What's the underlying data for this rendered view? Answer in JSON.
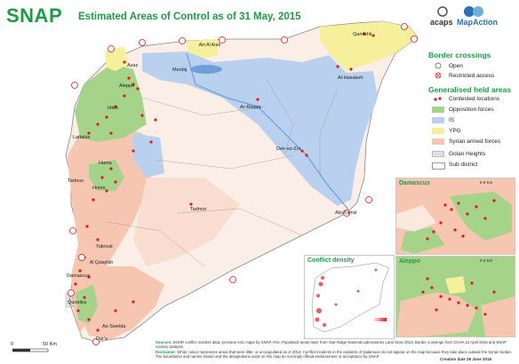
{
  "header": {
    "brand": "SNAP",
    "title": "Estimated Areas of Control as of 31 May, 2015",
    "logos": [
      "acaps",
      "MapAction"
    ]
  },
  "legend": {
    "border_heading": "Border crossings",
    "border_items": [
      "Open",
      "Restricted access"
    ],
    "areas_heading": "Generalised held areas",
    "area_items": [
      {
        "label": "Contested locations",
        "color": "#e01b1b"
      },
      {
        "label": "Opposition forces",
        "color": "#a6d38a"
      },
      {
        "label": "IS",
        "color": "#b9d0ee"
      },
      {
        "label": "YPG",
        "color": "#f6ef9c"
      },
      {
        "label": "Syrian armed forces",
        "color": "#f6c6b0"
      }
    ],
    "other_items": [
      "Golan Heights",
      "Sub district"
    ]
  },
  "places": {
    "azaz": "Azaz",
    "ain_al_arab": "Ain Al Arab",
    "aleppo": "Aleppo",
    "menbij": "Menbij",
    "qamishli": "Qamishli",
    "al_hasakeh": "Al-Hasakeh",
    "idleb": "Idleb",
    "ar_raqqa": "Ar-Raqqa",
    "lattakia": "Lattakia",
    "deir_ez_zor": "Deir-ez-Zor",
    "hama": "Hama",
    "tartous": "Tartous",
    "homs": "Homs",
    "tadmor": "Tadmor",
    "abu_kamal": "Abu Kamal",
    "yabroud": "Yabroud",
    "al_qutayfah": "Al Qutayfah",
    "damascus": "Damascus",
    "quneitra": "Quneitra",
    "as_sweida": "As-Sweida",
    "daraa": "Dar'a"
  },
  "insets": {
    "damascus": {
      "title": "Damascus",
      "scale": "0  5 Km"
    },
    "aleppo": {
      "title": "Aleppo",
      "scale": "0  2 Km"
    },
    "density": {
      "title": "Conflict density"
    }
  },
  "scale": {
    "zero": "0",
    "end": "50 Km"
  },
  "footer": {
    "sources_label": "Sources:",
    "sources": "SOHR conflict incident data; previous AoC maps by SNAP, HIU; Populated areas layer from Oak Ridge National Laboratories Land Scan 2013; Border crossings from OCHA 24 April 2015 and SNAP country analysis.",
    "disclaimer_label": "Disclaimer:",
    "disclaimer": "White colour represents areas that were little- or un-populated as of 2012; Conflict incidents in the outskirts of Qalamoun do not appear on the map because they take place outside the Syrian border. The boundaries and names shown and the designations used on this map do not imply official endorsement or acceptance by SNAP.",
    "date": "Creation date 28 June 2015"
  },
  "colors": {
    "opposition": "#a6d38a",
    "is": "#b9d0ee",
    "ypg": "#f6ef9c",
    "regime": "#f6c6b0",
    "contested": "#e01b1b",
    "brand_green": "#1f9a47"
  }
}
